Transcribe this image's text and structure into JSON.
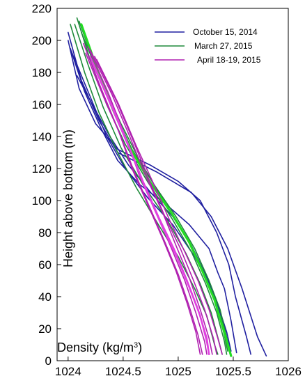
{
  "chart_data": {
    "type": "line",
    "xlabel": "Density (kg/m",
    "xlabel_sup": "3",
    "xlabel_close": ")",
    "ylabel": "Height above bottom (m)",
    "xlim": [
      1023.9,
      1026.0
    ],
    "ylim": [
      0,
      220
    ],
    "xticks": [
      1024,
      1024.5,
      1025,
      1025.5,
      1026
    ],
    "xtick_labels": [
      "1024",
      "1024.5",
      "1025",
      "1025.5",
      "1026"
    ],
    "yticks": [
      0,
      20,
      40,
      60,
      80,
      100,
      120,
      140,
      160,
      180,
      200,
      220
    ],
    "ytick_labels": [
      "0",
      "20",
      "40",
      "60",
      "80",
      "100",
      "120",
      "140",
      "160",
      "180",
      "200",
      "220"
    ],
    "grid": false,
    "legend_position": "top-right",
    "legend": [
      {
        "label": "October 15, 2014",
        "color": "#1f1fa0"
      },
      {
        "label": "March 27, 2015",
        "color": "#1e8a3a"
      },
      {
        "label": "April 18-19, 2015",
        "color": "#b020b0"
      }
    ],
    "series": [
      {
        "name": "October 15, 2014",
        "color": "#1f1fa0",
        "width": 1.6,
        "points": [
          [
            1024.0,
            205
          ],
          [
            1024.12,
            175
          ],
          [
            1024.28,
            150
          ],
          [
            1024.45,
            130
          ],
          [
            1024.8,
            118
          ],
          [
            1025.12,
            105
          ],
          [
            1025.3,
            90
          ],
          [
            1025.45,
            70
          ],
          [
            1025.58,
            45
          ],
          [
            1025.72,
            15
          ],
          [
            1025.8,
            3
          ]
        ]
      },
      {
        "name": "October 15, 2014",
        "color": "#1f1fa0",
        "width": 1.6,
        "points": [
          [
            1024.0,
            200
          ],
          [
            1024.1,
            170
          ],
          [
            1024.25,
            148
          ],
          [
            1024.45,
            132
          ],
          [
            1024.75,
            122
          ],
          [
            1025.0,
            112
          ],
          [
            1025.2,
            100
          ],
          [
            1025.35,
            80
          ],
          [
            1025.46,
            60
          ],
          [
            1025.52,
            40
          ],
          [
            1025.62,
            15
          ],
          [
            1025.66,
            4
          ]
        ]
      },
      {
        "name": "October 15, 2014",
        "color": "#1f1fa0",
        "width": 1.6,
        "points": [
          [
            1024.02,
            195
          ],
          [
            1024.15,
            168
          ],
          [
            1024.3,
            145
          ],
          [
            1024.45,
            125
          ],
          [
            1024.65,
            110
          ],
          [
            1024.9,
            97
          ],
          [
            1025.1,
            85
          ],
          [
            1025.28,
            70
          ],
          [
            1025.36,
            55
          ],
          [
            1025.42,
            45
          ],
          [
            1025.48,
            25
          ],
          [
            1025.53,
            5
          ]
        ]
      },
      {
        "name": "October 15, 2014",
        "color": "#1f1fa0",
        "width": 1.6,
        "points": [
          [
            1024.03,
            193
          ],
          [
            1024.2,
            165
          ],
          [
            1024.35,
            140
          ],
          [
            1024.52,
            120
          ],
          [
            1024.72,
            102
          ],
          [
            1024.95,
            85
          ],
          [
            1025.15,
            65
          ],
          [
            1025.28,
            48
          ],
          [
            1025.38,
            30
          ],
          [
            1025.45,
            12
          ],
          [
            1025.48,
            4
          ]
        ]
      },
      {
        "name": "October 15, 2014",
        "color": "#1f1fa0",
        "width": 1.6,
        "points": [
          [
            1024.08,
            178
          ],
          [
            1024.22,
            160
          ],
          [
            1024.38,
            140
          ],
          [
            1024.55,
            122
          ],
          [
            1024.75,
            105
          ],
          [
            1024.95,
            90
          ],
          [
            1025.12,
            72
          ],
          [
            1025.26,
            52
          ],
          [
            1025.36,
            35
          ],
          [
            1025.44,
            18
          ],
          [
            1025.48,
            6
          ]
        ]
      },
      {
        "name": "March 27, 2015",
        "color": "#1e8a3a",
        "width": 1.6,
        "points": [
          [
            1024.08,
            214
          ],
          [
            1024.2,
            188
          ],
          [
            1024.35,
            160
          ],
          [
            1024.52,
            135
          ],
          [
            1024.72,
            112
          ],
          [
            1024.95,
            88
          ],
          [
            1025.12,
            68
          ],
          [
            1025.25,
            48
          ],
          [
            1025.35,
            30
          ],
          [
            1025.42,
            12
          ],
          [
            1025.44,
            4
          ]
        ]
      },
      {
        "name": "March 27, 2015",
        "color": "#1e8a3a",
        "width": 1.6,
        "points": [
          [
            1024.06,
            210
          ],
          [
            1024.18,
            185
          ],
          [
            1024.32,
            158
          ],
          [
            1024.48,
            133
          ],
          [
            1024.68,
            110
          ],
          [
            1024.9,
            88
          ],
          [
            1025.07,
            67
          ],
          [
            1025.2,
            48
          ],
          [
            1025.3,
            30
          ],
          [
            1025.37,
            12
          ],
          [
            1025.4,
            4
          ]
        ]
      },
      {
        "name": "March 27, 2015",
        "color": "#1e8a3a",
        "width": 1.6,
        "points": [
          [
            1024.1,
            212
          ],
          [
            1024.24,
            185
          ],
          [
            1024.4,
            158
          ],
          [
            1024.58,
            132
          ],
          [
            1024.78,
            110
          ],
          [
            1024.98,
            90
          ],
          [
            1025.15,
            70
          ],
          [
            1025.28,
            50
          ],
          [
            1025.38,
            32
          ],
          [
            1025.45,
            12
          ],
          [
            1025.48,
            4
          ]
        ]
      },
      {
        "name": "March 27, 2015",
        "color": "#1e8a3a",
        "width": 1.6,
        "points": [
          [
            1024.02,
            210
          ],
          [
            1024.15,
            180
          ],
          [
            1024.28,
            155
          ],
          [
            1024.45,
            130
          ],
          [
            1024.62,
            108
          ],
          [
            1024.82,
            85
          ],
          [
            1025.0,
            65
          ],
          [
            1025.15,
            45
          ],
          [
            1025.26,
            28
          ],
          [
            1025.33,
            10
          ],
          [
            1025.36,
            4
          ]
        ]
      },
      {
        "name": "March 27, 2015",
        "color": "#1e8a3a",
        "width": 1.6,
        "points": [
          [
            1024.12,
            205
          ],
          [
            1024.3,
            175
          ],
          [
            1024.48,
            148
          ],
          [
            1024.65,
            125
          ],
          [
            1024.85,
            102
          ],
          [
            1025.05,
            80
          ],
          [
            1025.2,
            60
          ],
          [
            1025.32,
            40
          ],
          [
            1025.4,
            22
          ],
          [
            1025.45,
            6
          ]
        ]
      },
      {
        "name": "March 27, 2015",
        "color": "#22dd22",
        "width": 3.2,
        "points": [
          [
            1024.12,
            210
          ],
          [
            1024.26,
            183
          ],
          [
            1024.4,
            158
          ],
          [
            1024.56,
            133
          ],
          [
            1024.74,
            112
          ],
          [
            1024.94,
            92
          ],
          [
            1025.1,
            74
          ],
          [
            1025.22,
            56
          ],
          [
            1025.33,
            38
          ],
          [
            1025.4,
            22
          ],
          [
            1025.46,
            8
          ],
          [
            1025.48,
            3
          ]
        ]
      },
      {
        "name": "April 18-19, 2015",
        "color": "#b020b0",
        "width": 1.6,
        "points": [
          [
            1024.14,
            198
          ],
          [
            1024.3,
            170
          ],
          [
            1024.45,
            145
          ],
          [
            1024.58,
            120
          ],
          [
            1024.72,
            98
          ],
          [
            1024.86,
            76
          ],
          [
            1024.98,
            56
          ],
          [
            1025.08,
            36
          ],
          [
            1025.16,
            18
          ],
          [
            1025.2,
            4
          ]
        ]
      },
      {
        "name": "April 18-19, 2015",
        "color": "#b020b0",
        "width": 1.6,
        "points": [
          [
            1024.18,
            196
          ],
          [
            1024.36,
            168
          ],
          [
            1024.52,
            140
          ],
          [
            1024.65,
            115
          ],
          [
            1024.8,
            92
          ],
          [
            1024.94,
            70
          ],
          [
            1025.06,
            50
          ],
          [
            1025.16,
            30
          ],
          [
            1025.24,
            12
          ],
          [
            1025.26,
            4
          ]
        ]
      },
      {
        "name": "April 18-19, 2015",
        "color": "#b020b0",
        "width": 1.6,
        "points": [
          [
            1024.2,
            194
          ],
          [
            1024.4,
            166
          ],
          [
            1024.56,
            140
          ],
          [
            1024.7,
            116
          ],
          [
            1024.85,
            94
          ],
          [
            1024.98,
            72
          ],
          [
            1025.1,
            52
          ],
          [
            1025.2,
            32
          ],
          [
            1025.28,
            14
          ],
          [
            1025.31,
            4
          ]
        ]
      },
      {
        "name": "April 18-19, 2015",
        "color": "#b020b0",
        "width": 1.6,
        "points": [
          [
            1024.24,
            190
          ],
          [
            1024.44,
            162
          ],
          [
            1024.6,
            136
          ],
          [
            1024.74,
            112
          ],
          [
            1024.88,
            90
          ],
          [
            1025.02,
            70
          ],
          [
            1025.14,
            50
          ],
          [
            1025.24,
            32
          ],
          [
            1025.32,
            14
          ],
          [
            1025.35,
            4
          ]
        ]
      },
      {
        "name": "April 18-19, 2015",
        "color": "#b020b0",
        "width": 1.6,
        "points": [
          [
            1024.26,
            188
          ],
          [
            1024.46,
            160
          ],
          [
            1024.62,
            134
          ],
          [
            1024.78,
            110
          ],
          [
            1024.92,
            88
          ],
          [
            1025.06,
            68
          ],
          [
            1025.18,
            50
          ],
          [
            1025.28,
            32
          ],
          [
            1025.36,
            14
          ],
          [
            1025.4,
            4
          ]
        ]
      },
      {
        "name": "April 18-19, 2015",
        "color": "#b020b0",
        "width": 1.6,
        "points": [
          [
            1024.16,
            192
          ],
          [
            1024.32,
            165
          ],
          [
            1024.48,
            140
          ],
          [
            1024.6,
            118
          ],
          [
            1024.74,
            96
          ],
          [
            1024.88,
            74
          ],
          [
            1025.0,
            54
          ],
          [
            1025.1,
            34
          ],
          [
            1025.18,
            16
          ],
          [
            1025.22,
            4
          ]
        ]
      },
      {
        "name": "April 18-19, 2015",
        "color": "#e040e0",
        "width": 2.4,
        "points": [
          [
            1024.2,
            190
          ],
          [
            1024.38,
            162
          ],
          [
            1024.54,
            136
          ],
          [
            1024.68,
            112
          ],
          [
            1024.82,
            90
          ],
          [
            1024.96,
            70
          ],
          [
            1025.08,
            50
          ],
          [
            1025.18,
            32
          ],
          [
            1025.26,
            14
          ],
          [
            1025.28,
            4
          ]
        ]
      },
      {
        "name": "April 18-19, 2015",
        "color": "#e040e0",
        "width": 2.4,
        "points": [
          [
            1024.22,
            186
          ],
          [
            1024.4,
            158
          ],
          [
            1024.56,
            132
          ],
          [
            1024.7,
            108
          ],
          [
            1024.84,
            86
          ],
          [
            1024.98,
            66
          ],
          [
            1025.1,
            46
          ],
          [
            1025.2,
            28
          ],
          [
            1025.26,
            12
          ],
          [
            1025.28,
            4
          ]
        ]
      }
    ]
  }
}
